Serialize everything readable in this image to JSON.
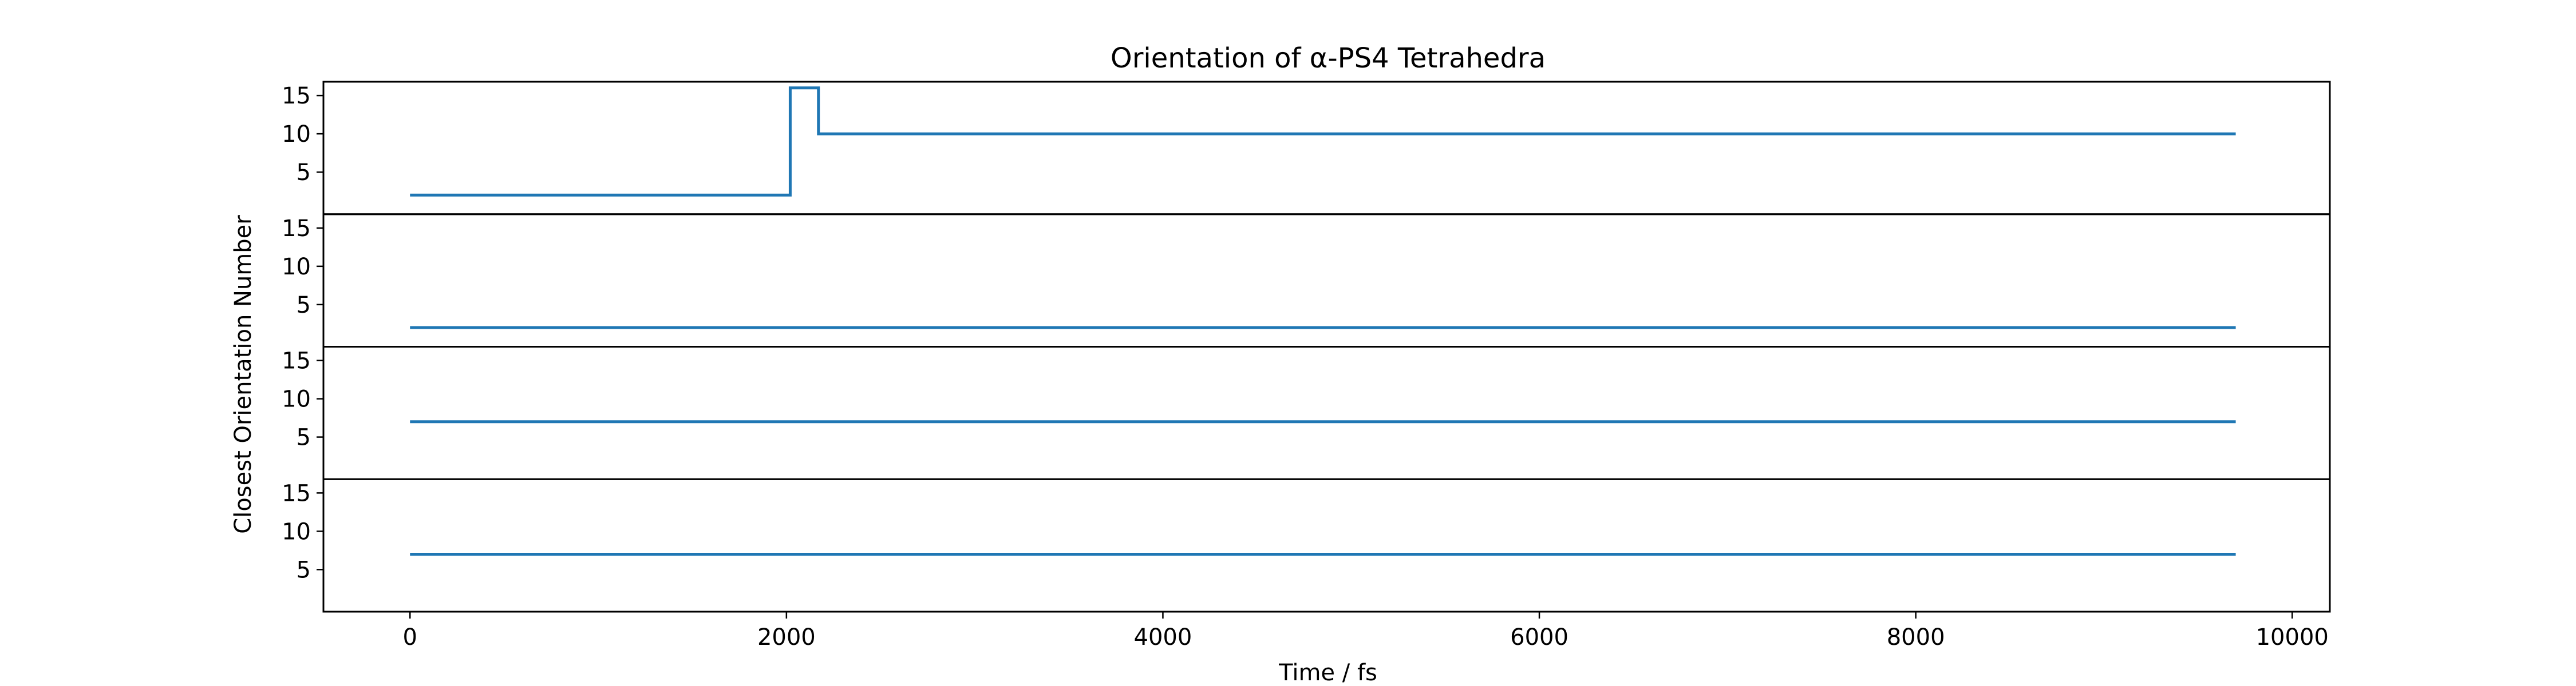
{
  "chart_data": {
    "type": "line",
    "title": "Orientation of α-PS4 Tetrahedra",
    "xlabel": "Time / fs",
    "ylabel": "Closest Orientation Number",
    "xlim": [
      -460,
      10200
    ],
    "x_ticks": [
      0,
      2000,
      4000,
      6000,
      8000,
      10000
    ],
    "ylim": [
      -0.5,
      16.8
    ],
    "y_ticks": [
      5,
      10,
      15
    ],
    "grid": false,
    "step_style": "post",
    "color": "#1f77b4",
    "subplots": [
      {
        "series": [
          {
            "x": [
              0,
              2020,
              2170,
              9700
            ],
            "y": [
              2,
              16,
              10,
              10
            ]
          }
        ]
      },
      {
        "series": [
          {
            "x": [
              0,
              9700
            ],
            "y": [
              2,
              2
            ]
          }
        ]
      },
      {
        "series": [
          {
            "x": [
              0,
              9700
            ],
            "y": [
              7,
              7
            ]
          }
        ]
      },
      {
        "series": [
          {
            "x": [
              0,
              9700
            ],
            "y": [
              7,
              7
            ]
          }
        ]
      }
    ]
  }
}
